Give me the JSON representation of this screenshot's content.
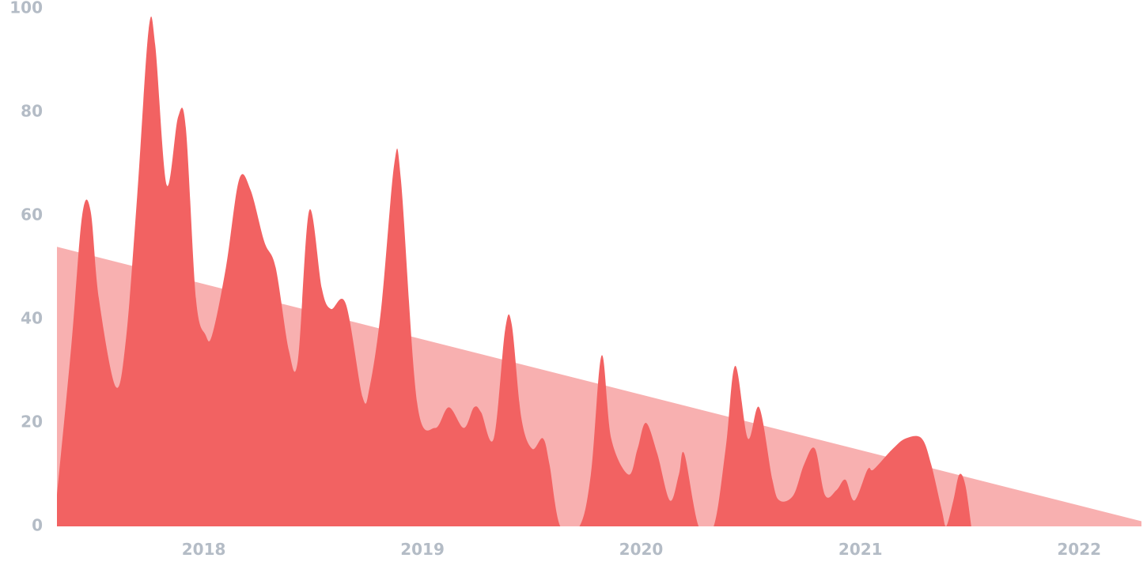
{
  "chart_data": {
    "type": "area",
    "title": "",
    "xlabel": "",
    "ylabel": "",
    "ylim": [
      0,
      100
    ],
    "xlim": [
      "2017-05-01",
      "2022-04-15"
    ],
    "grid": false,
    "legend": "none",
    "y_ticks": [
      "0",
      "20",
      "40",
      "60",
      "80",
      "100"
    ],
    "x_ticks": [
      {
        "label": "2018",
        "date": "2018-01-01"
      },
      {
        "label": "2019",
        "date": "2019-01-01"
      },
      {
        "label": "2020",
        "date": "2020-01-01"
      },
      {
        "label": "2021",
        "date": "2021-01-01"
      },
      {
        "label": "2022",
        "date": "2022-01-01"
      }
    ],
    "colors": {
      "series": "#f26262",
      "trend": "#f8b0b0",
      "tick_text": "#b4bcc6"
    },
    "series": [
      {
        "kind": "values",
        "points": [
          [
            "2017-05-01",
            6
          ],
          [
            "2017-05-25",
            35
          ],
          [
            "2017-06-12",
            60
          ],
          [
            "2017-06-26",
            61
          ],
          [
            "2017-07-10",
            44
          ],
          [
            "2017-08-07",
            27
          ],
          [
            "2017-08-24",
            36
          ],
          [
            "2017-09-12",
            64
          ],
          [
            "2017-10-01",
            96
          ],
          [
            "2017-10-12",
            93
          ],
          [
            "2017-10-31",
            66
          ],
          [
            "2017-11-19",
            79
          ],
          [
            "2017-12-02",
            77
          ],
          [
            "2017-12-19",
            44
          ],
          [
            "2018-01-04",
            37
          ],
          [
            "2018-01-15",
            37
          ],
          [
            "2018-02-07",
            50
          ],
          [
            "2018-03-01",
            67
          ],
          [
            "2018-03-20",
            65
          ],
          [
            "2018-04-12",
            55
          ],
          [
            "2018-05-01",
            50
          ],
          [
            "2018-05-23",
            34
          ],
          [
            "2018-06-07",
            32
          ],
          [
            "2018-06-26",
            61
          ],
          [
            "2018-07-17",
            46
          ],
          [
            "2018-08-01",
            42
          ],
          [
            "2018-08-26",
            43
          ],
          [
            "2018-09-23",
            25
          ],
          [
            "2018-10-05",
            27
          ],
          [
            "2018-10-24",
            42
          ],
          [
            "2018-11-15",
            70
          ],
          [
            "2018-11-26",
            67
          ],
          [
            "2018-12-23",
            24
          ],
          [
            "2019-01-22",
            19
          ],
          [
            "2019-02-14",
            23
          ],
          [
            "2019-03-11",
            19
          ],
          [
            "2019-03-28",
            23
          ],
          [
            "2019-04-09",
            22
          ],
          [
            "2019-04-30",
            17
          ],
          [
            "2019-05-19",
            38
          ],
          [
            "2019-05-30",
            39
          ],
          [
            "2019-06-15",
            21
          ],
          [
            "2019-07-03",
            15
          ],
          [
            "2019-07-21",
            17
          ],
          [
            "2019-08-01",
            12
          ],
          [
            "2019-08-19",
            0
          ],
          [
            "2019-09-20",
            0
          ],
          [
            "2019-10-09",
            10
          ],
          [
            "2019-10-27",
            33
          ],
          [
            "2019-11-12",
            17
          ],
          [
            "2019-12-11",
            10
          ],
          [
            "2019-12-26",
            15
          ],
          [
            "2020-01-09",
            20
          ],
          [
            "2020-01-28",
            14
          ],
          [
            "2020-02-18",
            5
          ],
          [
            "2020-03-04",
            10
          ],
          [
            "2020-03-13",
            14
          ],
          [
            "2020-04-06",
            0
          ],
          [
            "2020-05-01",
            0
          ],
          [
            "2020-05-21",
            15
          ],
          [
            "2020-06-06",
            31
          ],
          [
            "2020-06-27",
            17
          ],
          [
            "2020-07-16",
            23
          ],
          [
            "2020-08-07",
            9
          ],
          [
            "2020-08-19",
            5
          ],
          [
            "2020-09-11",
            6
          ],
          [
            "2020-09-29",
            12
          ],
          [
            "2020-10-17",
            15
          ],
          [
            "2020-11-03",
            6
          ],
          [
            "2020-11-22",
            7
          ],
          [
            "2020-12-07",
            9
          ],
          [
            "2020-12-22",
            5
          ],
          [
            "2021-01-13",
            11
          ],
          [
            "2021-01-23",
            11
          ],
          [
            "2021-02-24",
            15
          ],
          [
            "2021-03-18",
            17
          ],
          [
            "2021-04-13",
            17
          ],
          [
            "2021-04-29",
            12
          ],
          [
            "2021-05-17",
            3
          ],
          [
            "2021-05-24",
            0
          ],
          [
            "2021-06-05",
            5
          ],
          [
            "2021-06-15",
            10
          ],
          [
            "2021-06-25",
            8
          ],
          [
            "2021-07-05",
            0
          ]
        ]
      },
      {
        "kind": "trend",
        "points": [
          [
            "2017-05-01",
            54
          ],
          [
            "2022-04-15",
            1
          ]
        ]
      }
    ]
  }
}
